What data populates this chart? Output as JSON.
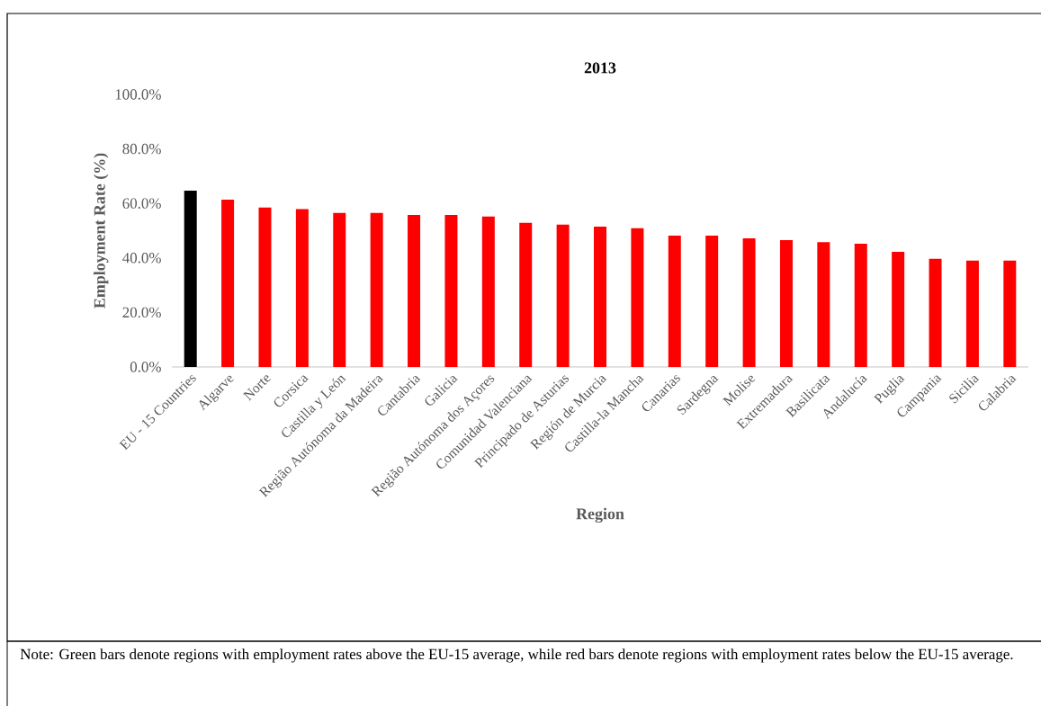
{
  "chart_data": {
    "type": "bar",
    "title": "2013",
    "xlabel": "Region",
    "ylabel": "Employment  Rate (%)",
    "categories": [
      "EU - 15 Countries",
      "Algarve",
      "Norte",
      "Corsica",
      "Castilla y León",
      "Região Autónoma da Madeira",
      "Cantabria",
      "Galicia",
      "Região Autónoma dos Açores",
      "Comunidad Valenciana",
      "Principado de Asturias",
      "Región de Murcia",
      "Castilla-la Mancha",
      "Canarias",
      "Sardegna",
      "Molise",
      "Extremadura",
      "Basilicata",
      "Andalucía",
      "Puglia",
      "Campania",
      "Sicilia",
      "Calabria"
    ],
    "values": [
      64.7,
      61.4,
      58.5,
      57.9,
      56.5,
      56.5,
      55.8,
      55.8,
      55.2,
      52.9,
      52.2,
      51.5,
      50.9,
      48.2,
      48.2,
      47.2,
      46.5,
      45.8,
      45.2,
      42.2,
      39.7,
      39.0,
      39.0
    ],
    "colors": [
      "#000000",
      "#ff0000",
      "#ff0000",
      "#ff0000",
      "#ff0000",
      "#ff0000",
      "#ff0000",
      "#ff0000",
      "#ff0000",
      "#ff0000",
      "#ff0000",
      "#ff0000",
      "#ff0000",
      "#ff0000",
      "#ff0000",
      "#ff0000",
      "#ff0000",
      "#ff0000",
      "#ff0000",
      "#ff0000",
      "#ff0000",
      "#ff0000",
      "#ff0000"
    ],
    "ylim": [
      0,
      100
    ],
    "yticks": [
      {
        "value": 0,
        "label": "0.0%"
      },
      {
        "value": 20,
        "label": "20.0%"
      },
      {
        "value": 40,
        "label": "40.0%"
      },
      {
        "value": 60,
        "label": "60.0%"
      },
      {
        "value": 80,
        "label": "80.0%"
      },
      {
        "value": 100,
        "label": "100.0%"
      }
    ],
    "grid": false,
    "annotations": [
      "Note: Green bars denote regions with employment rates above the EU-15 average, while red bars denote regions with employment rates below the EU-15 average."
    ]
  }
}
